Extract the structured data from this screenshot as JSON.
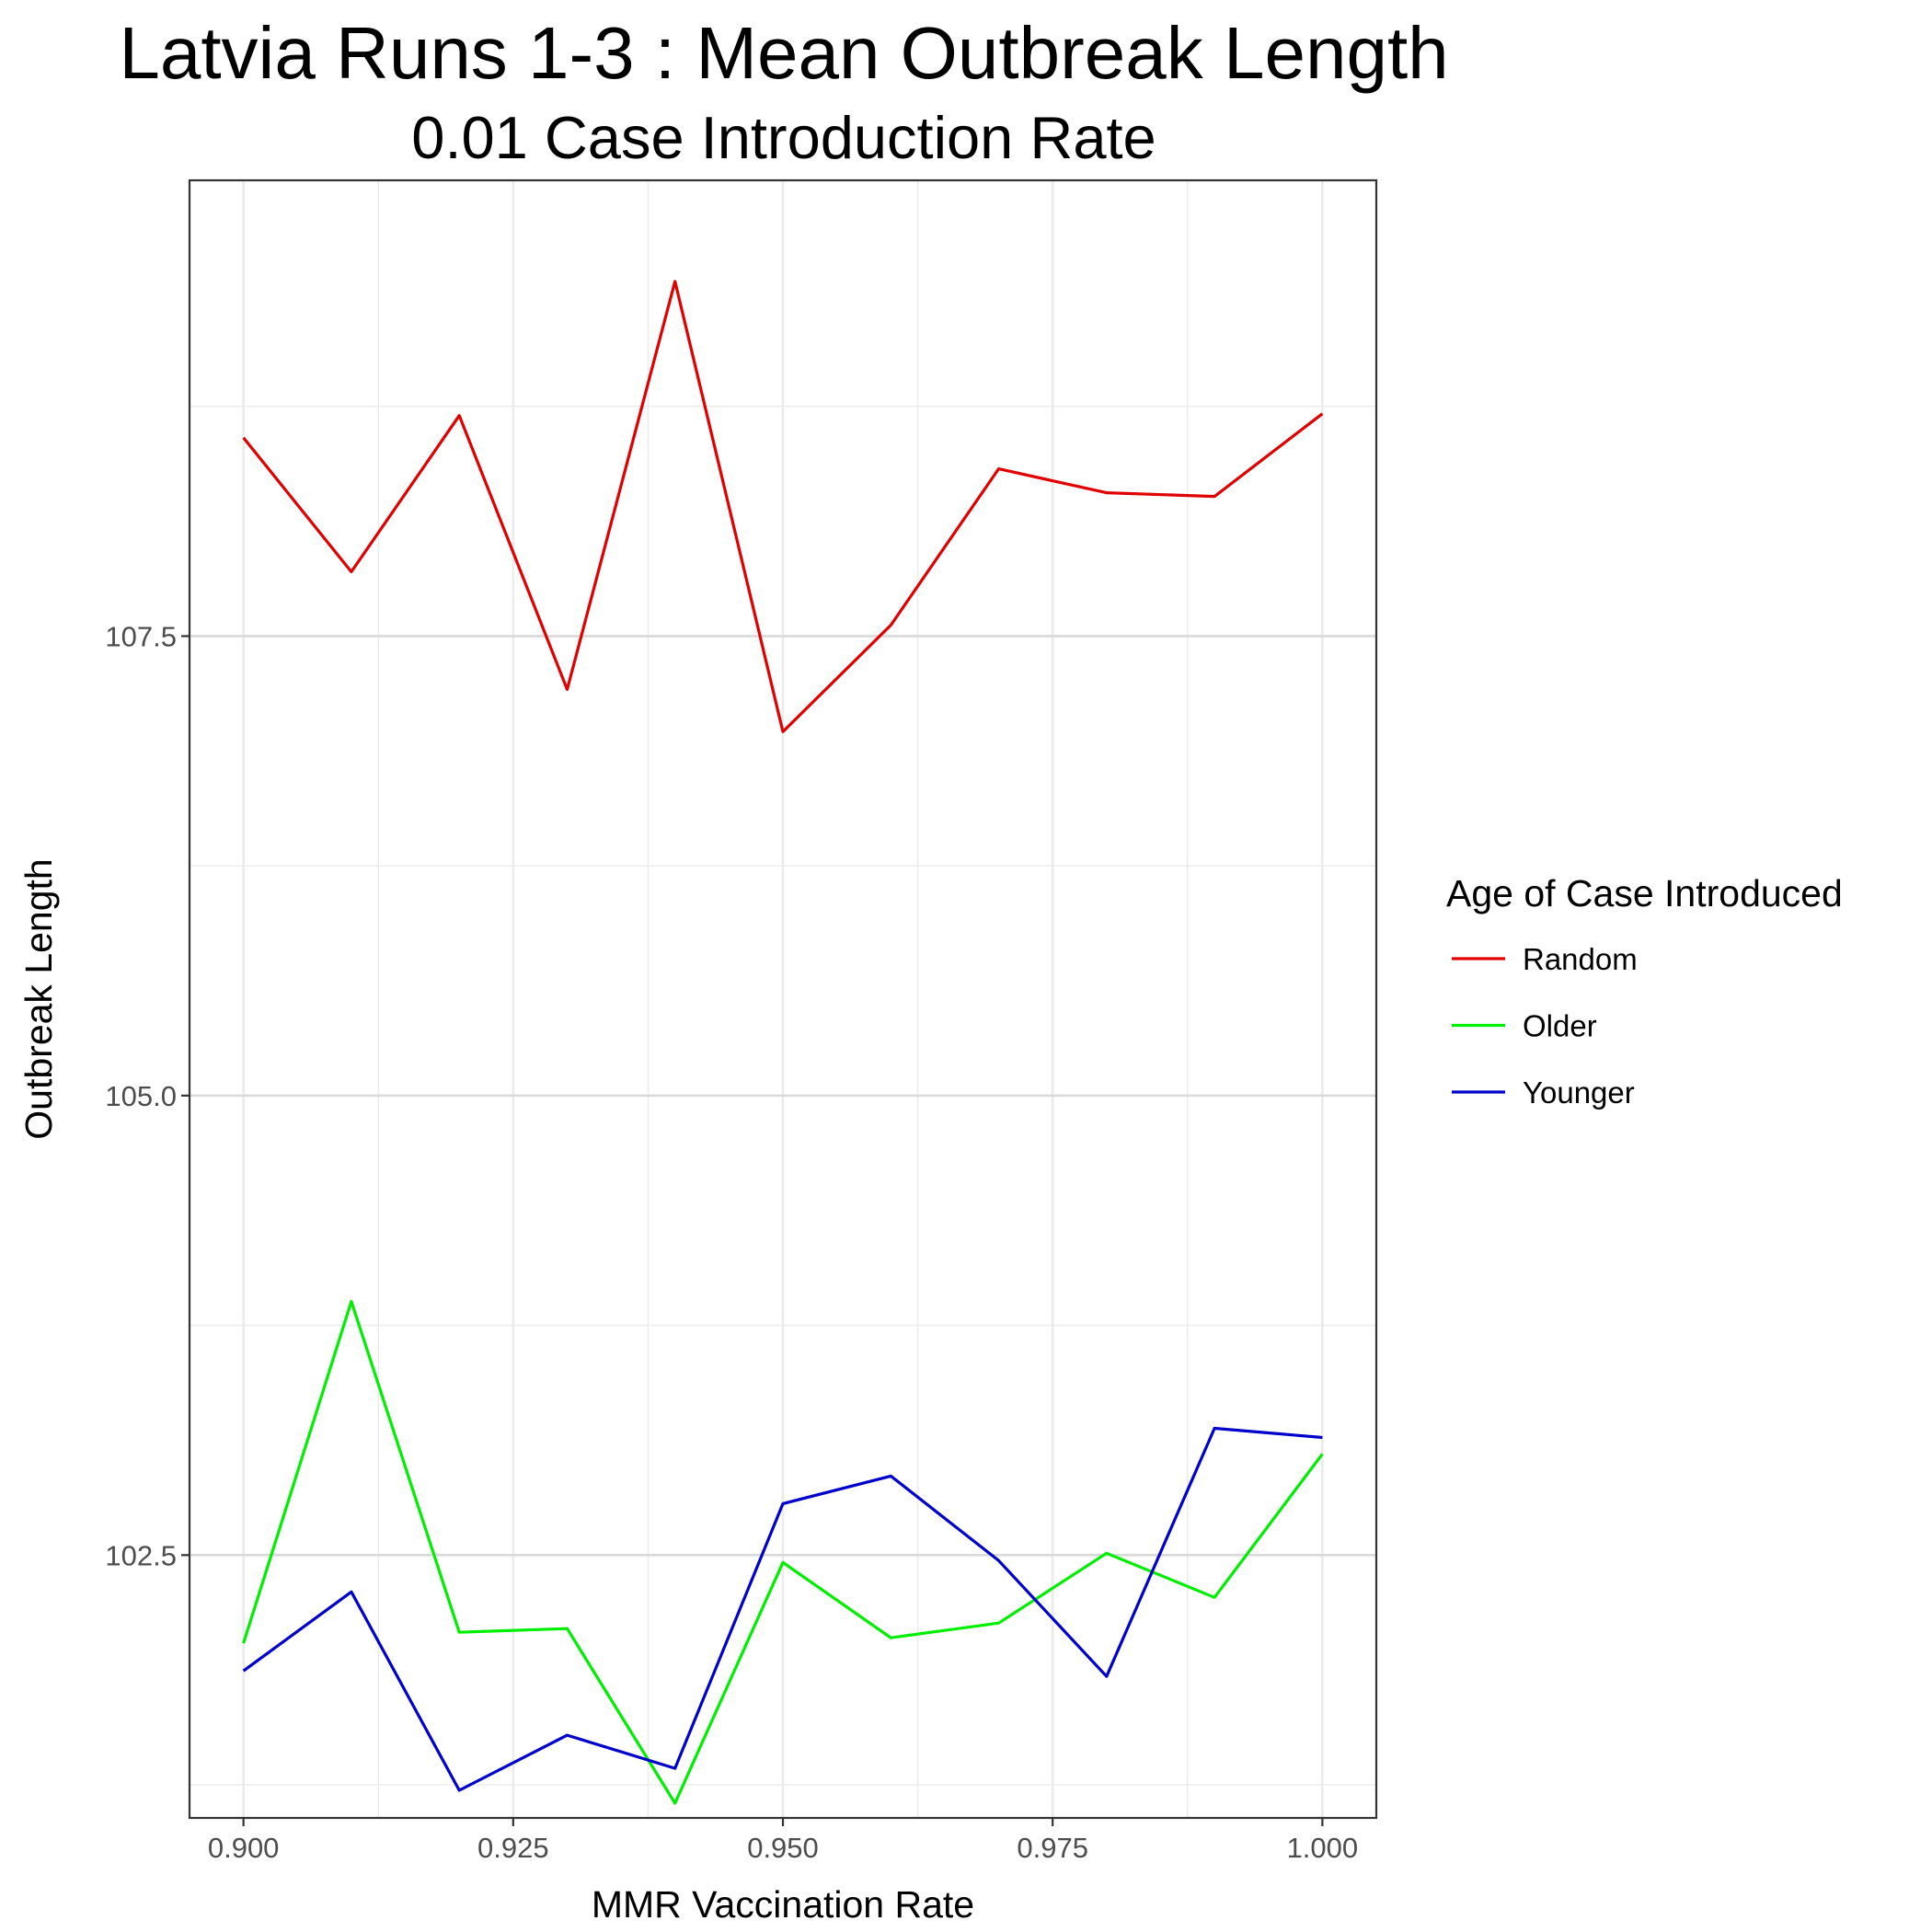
{
  "chart_data": {
    "type": "line",
    "title": "Latvia Runs 1-3 : Mean Outbreak Length",
    "subtitle": "0.01 Case Introduction Rate",
    "xlabel": "MMR Vaccination Rate",
    "ylabel": "Outbreak Length",
    "x": [
      0.9,
      0.91,
      0.92,
      0.93,
      0.94,
      0.95,
      0.96,
      0.97,
      0.98,
      0.99,
      1.0
    ],
    "xlim": [
      0.895,
      1.005
    ],
    "ylim": [
      101.07,
      109.98
    ],
    "x_ticks": [
      0.9,
      0.925,
      0.95,
      0.975,
      1.0
    ],
    "x_tick_labels": [
      "0.900",
      "0.925",
      "0.950",
      "0.975",
      "1.000"
    ],
    "y_ticks": [
      102.5,
      105.0,
      107.5
    ],
    "y_tick_labels": [
      "102.5",
      "105.0",
      "107.5"
    ],
    "y_minor_ticks": [
      101.25,
      103.75,
      106.25,
      108.75
    ],
    "x_minor_ticks": [
      0.9125,
      0.9375,
      0.9625,
      0.9875
    ],
    "grid": true,
    "legend_title": "Age of Case Introduced",
    "legend_position": "right",
    "series": [
      {
        "name": "Random",
        "color": "#e00000",
        "values": [
          108.58,
          107.85,
          108.7,
          107.21,
          109.43,
          106.98,
          107.56,
          108.41,
          108.28,
          108.26,
          108.71
        ]
      },
      {
        "name": "Older",
        "color": "#00ee00",
        "values": [
          102.02,
          103.88,
          102.08,
          102.1,
          101.15,
          102.46,
          102.05,
          102.13,
          102.51,
          102.27,
          103.05
        ]
      },
      {
        "name": "Younger",
        "color": "#0000cc",
        "values": [
          101.87,
          102.3,
          101.22,
          101.52,
          101.34,
          102.78,
          102.93,
          102.47,
          101.84,
          103.19,
          103.14
        ]
      }
    ]
  }
}
